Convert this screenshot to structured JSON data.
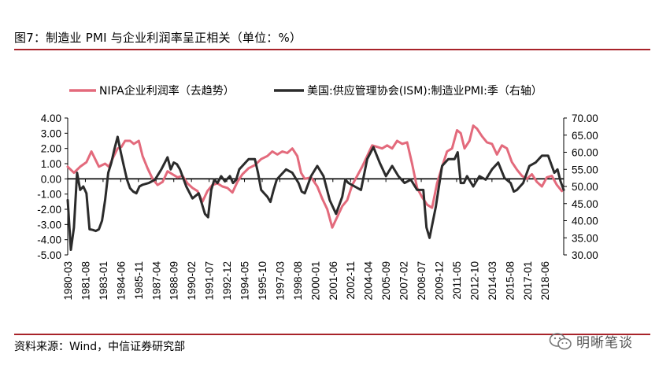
{
  "header": {
    "title": "图7：制造业 PMI 与企业利润率呈正相关（单位：%）"
  },
  "footer": {
    "source": "资料来源：Wind，中信证券研究部",
    "brand": "明晰笔谈"
  },
  "colors": {
    "accent": "#a8232a",
    "nipa": "#e36a7c",
    "pmi": "#2b2b2b"
  },
  "chart_data": {
    "type": "line",
    "title": "",
    "legend": [
      "NIPA企业利润率（去趋势）",
      "美国:供应管理协会(ISM):制造业PMI:季（右轴）"
    ],
    "left_axis": {
      "min": -5,
      "max": 4,
      "ticks": [
        "4.00",
        "3.00",
        "2.00",
        "1.00",
        "0.00",
        "-1.00",
        "-2.00",
        "-3.00",
        "-4.00",
        "-5.00"
      ]
    },
    "right_axis": {
      "min": 30,
      "max": 70,
      "ticks": [
        "70.00",
        "65.00",
        "60.00",
        "55.00",
        "50.00",
        "45.00",
        "40.00",
        "35.00",
        "30.00"
      ]
    },
    "x_range": [
      1980.0,
      2019.75
    ],
    "x_tick_labels": [
      "1980-03",
      "1981-08",
      "1983-01",
      "1984-06",
      "1985-11",
      "1987-04",
      "1988-09",
      "1990-02",
      "1991-07",
      "1992-12",
      "1994-05",
      "1995-10",
      "1997-03",
      "1998-08",
      "2000-01",
      "2001-06",
      "2002-11",
      "2004-04",
      "2005-09",
      "2007-02",
      "2008-07",
      "2009-12",
      "2011-05",
      "2012-10",
      "2014-03",
      "2015-08",
      "2017-01",
      "2018-06"
    ],
    "series": [
      {
        "name": "NIPA企业利润率（去趋势）",
        "axis": "left",
        "points": [
          [
            1980.0,
            0.8
          ],
          [
            1980.5,
            0.4
          ],
          [
            1981.0,
            0.8
          ],
          [
            1981.5,
            1.1
          ],
          [
            1981.9,
            1.8
          ],
          [
            1982.2,
            1.3
          ],
          [
            1982.5,
            0.8
          ],
          [
            1983.0,
            1.0
          ],
          [
            1983.3,
            0.8
          ],
          [
            1983.7,
            1.5
          ],
          [
            1984.0,
            2.0
          ],
          [
            1984.3,
            2.1
          ],
          [
            1984.6,
            2.5
          ],
          [
            1985.0,
            2.5
          ],
          [
            1985.3,
            2.3
          ],
          [
            1985.7,
            2.5
          ],
          [
            1986.0,
            1.5
          ],
          [
            1986.4,
            0.7
          ],
          [
            1986.8,
            0.0
          ],
          [
            1987.2,
            -0.4
          ],
          [
            1987.6,
            -0.2
          ],
          [
            1988.0,
            0.5
          ],
          [
            1988.4,
            0.3
          ],
          [
            1988.8,
            0.1
          ],
          [
            1989.2,
            0.2
          ],
          [
            1989.6,
            -0.3
          ],
          [
            1990.0,
            -0.6
          ],
          [
            1990.4,
            -0.8
          ],
          [
            1990.8,
            -1.5
          ],
          [
            1991.2,
            -0.8
          ],
          [
            1991.6,
            -0.4
          ],
          [
            1992.0,
            -0.3
          ],
          [
            1992.4,
            -0.5
          ],
          [
            1992.8,
            -0.6
          ],
          [
            1993.2,
            -0.9
          ],
          [
            1993.6,
            -0.2
          ],
          [
            1994.0,
            0.3
          ],
          [
            1994.5,
            0.7
          ],
          [
            1995.0,
            0.9
          ],
          [
            1995.5,
            1.3
          ],
          [
            1996.0,
            1.5
          ],
          [
            1996.4,
            1.8
          ],
          [
            1996.8,
            1.6
          ],
          [
            1997.2,
            1.8
          ],
          [
            1997.6,
            1.7
          ],
          [
            1998.0,
            2.0
          ],
          [
            1998.4,
            1.5
          ],
          [
            1998.7,
            0.4
          ],
          [
            1999.0,
            0.0
          ],
          [
            1999.5,
            0.1
          ],
          [
            2000.0,
            -0.5
          ],
          [
            2000.4,
            -1.3
          ],
          [
            2000.8,
            -2.0
          ],
          [
            2001.2,
            -3.2
          ],
          [
            2001.6,
            -2.5
          ],
          [
            2002.0,
            -1.8
          ],
          [
            2002.4,
            -1.4
          ],
          [
            2002.8,
            -0.4
          ],
          [
            2003.2,
            0.2
          ],
          [
            2003.6,
            0.8
          ],
          [
            2004.0,
            1.5
          ],
          [
            2004.4,
            2.2
          ],
          [
            2004.8,
            2.1
          ],
          [
            2005.2,
            2.0
          ],
          [
            2005.6,
            2.2
          ],
          [
            2006.0,
            2.0
          ],
          [
            2006.4,
            2.5
          ],
          [
            2006.8,
            2.3
          ],
          [
            2007.2,
            2.4
          ],
          [
            2007.6,
            1.0
          ],
          [
            2008.0,
            -0.6
          ],
          [
            2008.4,
            -1.2
          ],
          [
            2008.8,
            -1.7
          ],
          [
            2009.2,
            -1.9
          ],
          [
            2009.6,
            -0.3
          ],
          [
            2010.0,
            0.8
          ],
          [
            2010.4,
            1.8
          ],
          [
            2010.8,
            2.0
          ],
          [
            2011.2,
            3.2
          ],
          [
            2011.5,
            3.0
          ],
          [
            2011.8,
            2.0
          ],
          [
            2012.2,
            2.5
          ],
          [
            2012.5,
            3.5
          ],
          [
            2012.8,
            3.3
          ],
          [
            2013.2,
            2.8
          ],
          [
            2013.6,
            2.4
          ],
          [
            2014.0,
            2.3
          ],
          [
            2014.4,
            1.6
          ],
          [
            2014.8,
            2.2
          ],
          [
            2015.2,
            2.0
          ],
          [
            2015.6,
            1.1
          ],
          [
            2016.0,
            0.6
          ],
          [
            2016.4,
            0.2
          ],
          [
            2016.8,
            0.0
          ],
          [
            2017.2,
            0.3
          ],
          [
            2017.6,
            -0.2
          ],
          [
            2018.0,
            -0.5
          ],
          [
            2018.4,
            0.1
          ],
          [
            2018.8,
            0.2
          ],
          [
            2019.2,
            -0.4
          ],
          [
            2019.6,
            -0.8
          ]
        ]
      },
      {
        "name": "美国:供应管理协会(ISM):制造业PMI:季（右轴）",
        "axis": "right",
        "points": [
          [
            1980.0,
            46
          ],
          [
            1980.25,
            31.5
          ],
          [
            1980.5,
            38
          ],
          [
            1980.75,
            54
          ],
          [
            1981.0,
            49
          ],
          [
            1981.25,
            50
          ],
          [
            1981.5,
            48
          ],
          [
            1981.75,
            37.5
          ],
          [
            1982.0,
            37.3
          ],
          [
            1982.25,
            37
          ],
          [
            1982.5,
            37.5
          ],
          [
            1982.75,
            40
          ],
          [
            1983.0,
            46
          ],
          [
            1983.25,
            54
          ],
          [
            1983.5,
            57
          ],
          [
            1983.75,
            61
          ],
          [
            1984.0,
            64.5
          ],
          [
            1984.25,
            60
          ],
          [
            1984.5,
            56
          ],
          [
            1984.75,
            52
          ],
          [
            1985.0,
            49.5
          ],
          [
            1985.25,
            48.5
          ],
          [
            1985.5,
            48
          ],
          [
            1985.75,
            50
          ],
          [
            1986.0,
            50.5
          ],
          [
            1986.5,
            51
          ],
          [
            1987.0,
            52
          ],
          [
            1987.5,
            55
          ],
          [
            1988.0,
            58.5
          ],
          [
            1988.25,
            55
          ],
          [
            1988.5,
            57
          ],
          [
            1988.75,
            56.5
          ],
          [
            1989.0,
            55
          ],
          [
            1989.5,
            50
          ],
          [
            1990.0,
            46.5
          ],
          [
            1990.5,
            48
          ],
          [
            1991.0,
            42
          ],
          [
            1991.25,
            41
          ],
          [
            1991.5,
            49
          ],
          [
            1991.75,
            52
          ],
          [
            1992.0,
            51
          ],
          [
            1992.3,
            53
          ],
          [
            1992.6,
            51.5
          ],
          [
            1993.0,
            53
          ],
          [
            1993.25,
            51
          ],
          [
            1993.5,
            52
          ],
          [
            1993.75,
            55
          ],
          [
            1994.0,
            56
          ],
          [
            1994.5,
            58
          ],
          [
            1995.0,
            58
          ],
          [
            1995.25,
            54
          ],
          [
            1995.5,
            49
          ],
          [
            1995.75,
            48
          ],
          [
            1996.0,
            47
          ],
          [
            1996.25,
            45.5
          ],
          [
            1996.5,
            49
          ],
          [
            1996.75,
            52
          ],
          [
            1997.0,
            53
          ],
          [
            1997.5,
            55
          ],
          [
            1998.0,
            54
          ],
          [
            1998.5,
            51
          ],
          [
            1998.75,
            48.5
          ],
          [
            1999.0,
            48
          ],
          [
            1999.5,
            53
          ],
          [
            2000.0,
            56
          ],
          [
            2000.5,
            53
          ],
          [
            2001.0,
            46
          ],
          [
            2001.5,
            42
          ],
          [
            2002.0,
            47
          ],
          [
            2002.25,
            52
          ],
          [
            2002.5,
            51
          ],
          [
            2003.0,
            50
          ],
          [
            2003.5,
            49
          ],
          [
            2004.0,
            58
          ],
          [
            2004.5,
            61.5
          ],
          [
            2005.0,
            57
          ],
          [
            2005.5,
            53
          ],
          [
            2006.0,
            56
          ],
          [
            2006.5,
            53
          ],
          [
            2007.0,
            51
          ],
          [
            2007.5,
            52
          ],
          [
            2008.0,
            49
          ],
          [
            2008.5,
            49
          ],
          [
            2008.75,
            38
          ],
          [
            2009.0,
            35
          ],
          [
            2009.5,
            44
          ],
          [
            2010.0,
            56
          ],
          [
            2010.5,
            58
          ],
          [
            2011.0,
            58
          ],
          [
            2011.25,
            60
          ],
          [
            2011.5,
            51
          ],
          [
            2011.75,
            51
          ],
          [
            2012.0,
            53
          ],
          [
            2012.5,
            50
          ],
          [
            2013.0,
            53
          ],
          [
            2013.5,
            52
          ],
          [
            2014.0,
            55
          ],
          [
            2014.5,
            57
          ],
          [
            2015.0,
            52.5
          ],
          [
            2015.5,
            51
          ],
          [
            2015.75,
            48.5
          ],
          [
            2016.0,
            49
          ],
          [
            2016.5,
            51
          ],
          [
            2017.0,
            56
          ],
          [
            2017.5,
            57
          ],
          [
            2018.0,
            59
          ],
          [
            2018.5,
            59
          ],
          [
            2019.0,
            54
          ],
          [
            2019.25,
            55
          ],
          [
            2019.5,
            51.5
          ],
          [
            2019.75,
            49
          ]
        ]
      }
    ]
  }
}
